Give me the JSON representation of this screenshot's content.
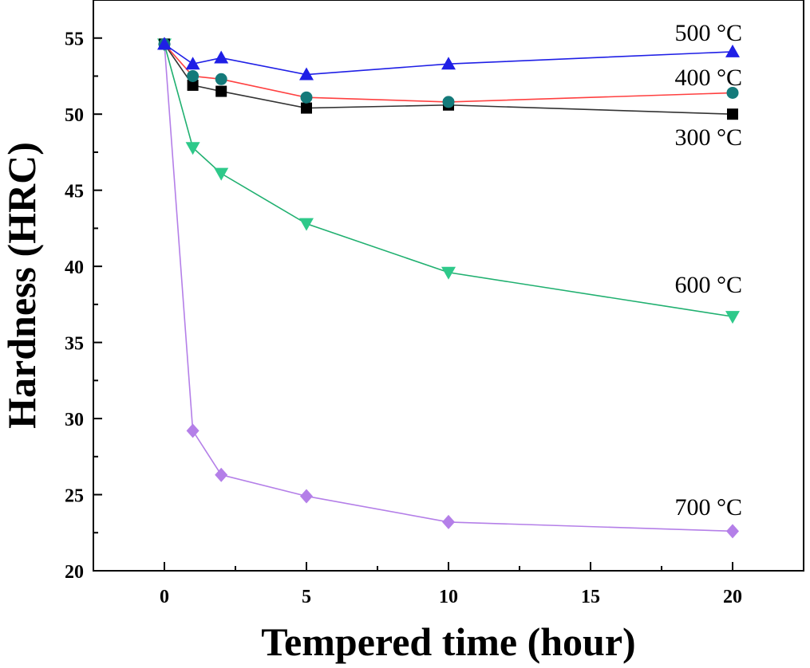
{
  "chart_data": {
    "type": "line",
    "title": "",
    "xlabel": "Tempered time (hour)",
    "ylabel": "Hardness (HRC)",
    "xlim": [
      -2.5,
      22.5
    ],
    "ylim": [
      20,
      57.5
    ],
    "xticks": [
      0,
      5,
      10,
      15,
      20
    ],
    "yticks": [
      20,
      25,
      30,
      35,
      40,
      45,
      50,
      55
    ],
    "grid": false,
    "legend": "labels beside curves",
    "series": [
      {
        "name": "500 °C",
        "marker": "triangle-up",
        "color": "#1f1fe6",
        "x": [
          0,
          1,
          2,
          5,
          10,
          20
        ],
        "y": [
          54.6,
          53.3,
          53.7,
          52.6,
          53.3,
          54.1
        ]
      },
      {
        "name": "400 °C",
        "marker": "circle",
        "color": "#ff4040",
        "marker_color": "#147a7a",
        "x": [
          0,
          1,
          2,
          5,
          10,
          20
        ],
        "y": [
          54.6,
          52.5,
          52.3,
          51.1,
          50.8,
          51.4
        ]
      },
      {
        "name": "300 °C",
        "marker": "square",
        "color": "#333333",
        "marker_color": "#000000",
        "x": [
          0,
          1,
          2,
          5,
          10,
          20
        ],
        "y": [
          54.6,
          51.9,
          51.5,
          50.4,
          50.6,
          50.0
        ]
      },
      {
        "name": "600 °C",
        "marker": "triangle-down",
        "color": "#20b070",
        "marker_color": "#2ec98a",
        "x": [
          0,
          1,
          2,
          5,
          10,
          20
        ],
        "y": [
          54.6,
          47.8,
          46.1,
          42.8,
          39.6,
          36.7
        ]
      },
      {
        "name": "700 °C",
        "marker": "diamond",
        "color": "#b47fe8",
        "marker_color": "#b47fe8",
        "x": [
          0,
          1,
          2,
          5,
          10,
          20
        ],
        "y": [
          54.6,
          29.2,
          26.3,
          24.9,
          23.2,
          22.6
        ]
      }
    ]
  }
}
